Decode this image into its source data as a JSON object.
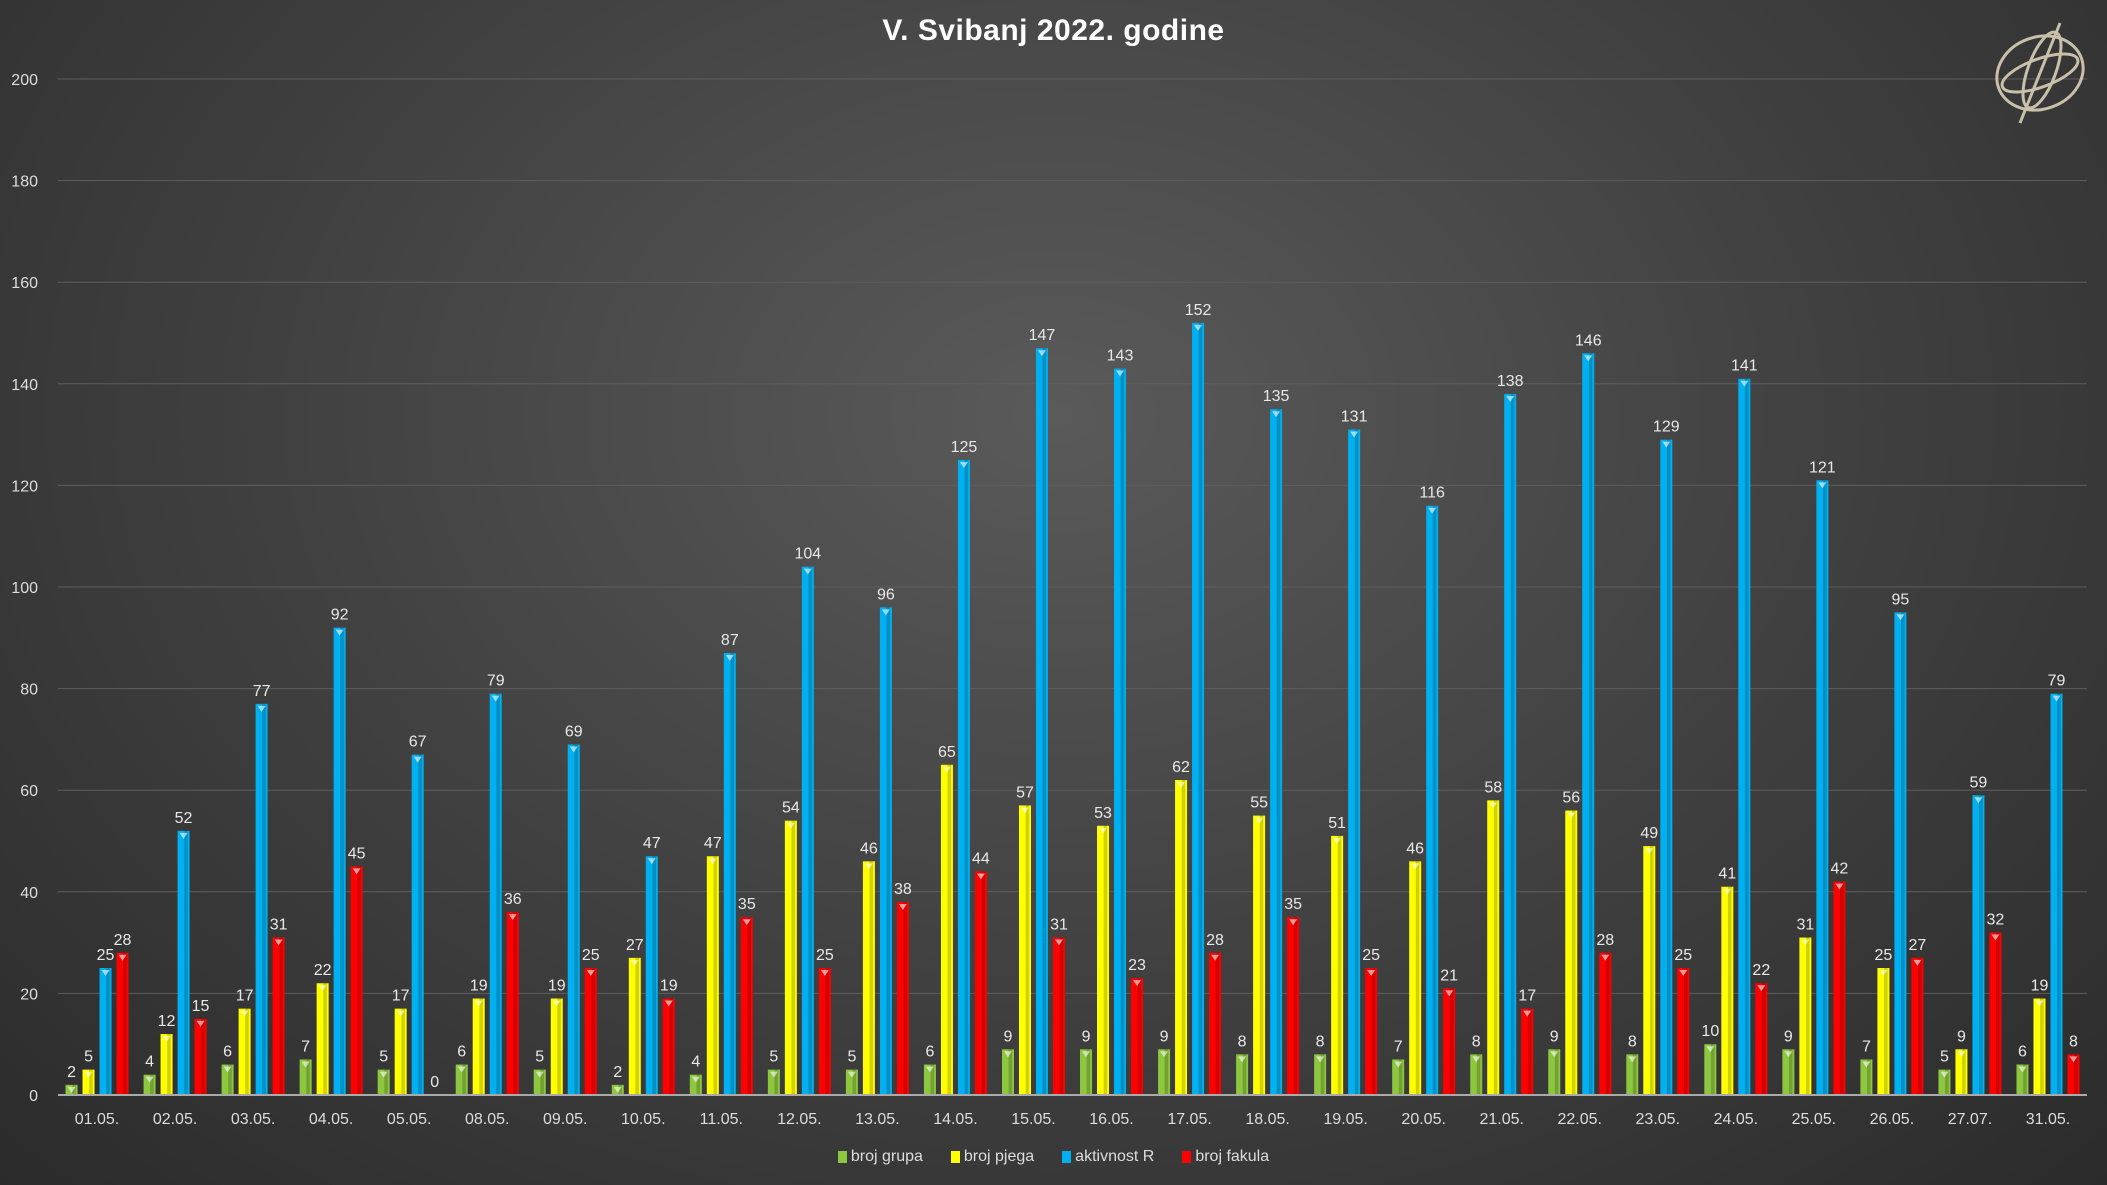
{
  "chart_data": {
    "type": "bar",
    "title": "V. Svibanj 2022. godine",
    "xlabel": "",
    "ylabel": "",
    "ylim": [
      0,
      200
    ],
    "yticks": [
      0,
      20,
      40,
      60,
      80,
      100,
      120,
      140,
      160,
      180,
      200
    ],
    "grid": true,
    "legend_position": "bottom",
    "categories": [
      "01.05.",
      "02.05.",
      "03.05.",
      "04.05.",
      "05.05.",
      "08.05.",
      "09.05.",
      "10.05.",
      "11.05.",
      "12.05.",
      "13.05.",
      "14.05.",
      "15.05.",
      "16.05.",
      "17.05.",
      "18.05.",
      "19.05.",
      "20.05.",
      "21.05.",
      "22.05.",
      "23.05.",
      "24.05.",
      "25.05.",
      "26.05.",
      "27.07.",
      "31.05."
    ],
    "series": [
      {
        "name": "broj grupa",
        "color": "#8dc63f",
        "values": [
          2,
          4,
          6,
          7,
          5,
          6,
          5,
          2,
          4,
          5,
          5,
          6,
          9,
          9,
          9,
          8,
          8,
          7,
          8,
          9,
          8,
          10,
          9,
          7,
          5,
          6
        ]
      },
      {
        "name": "broj pjega",
        "color": "#ffff00",
        "values": [
          5,
          12,
          17,
          22,
          17,
          19,
          19,
          27,
          47,
          54,
          46,
          65,
          57,
          53,
          62,
          55,
          51,
          46,
          58,
          56,
          49,
          41,
          31,
          25,
          9,
          19
        ]
      },
      {
        "name": "aktivnost R",
        "color": "#00b0f0",
        "values": [
          25,
          52,
          77,
          92,
          67,
          79,
          69,
          47,
          87,
          104,
          96,
          125,
          147,
          143,
          152,
          135,
          131,
          116,
          138,
          146,
          129,
          141,
          121,
          95,
          59,
          79
        ]
      },
      {
        "name": "broj fakula",
        "color": "#ff0000",
        "values": [
          28,
          15,
          31,
          45,
          0,
          36,
          25,
          19,
          35,
          25,
          38,
          44,
          31,
          23,
          28,
          35,
          25,
          21,
          17,
          28,
          25,
          22,
          42,
          27,
          32,
          8
        ]
      }
    ]
  }
}
